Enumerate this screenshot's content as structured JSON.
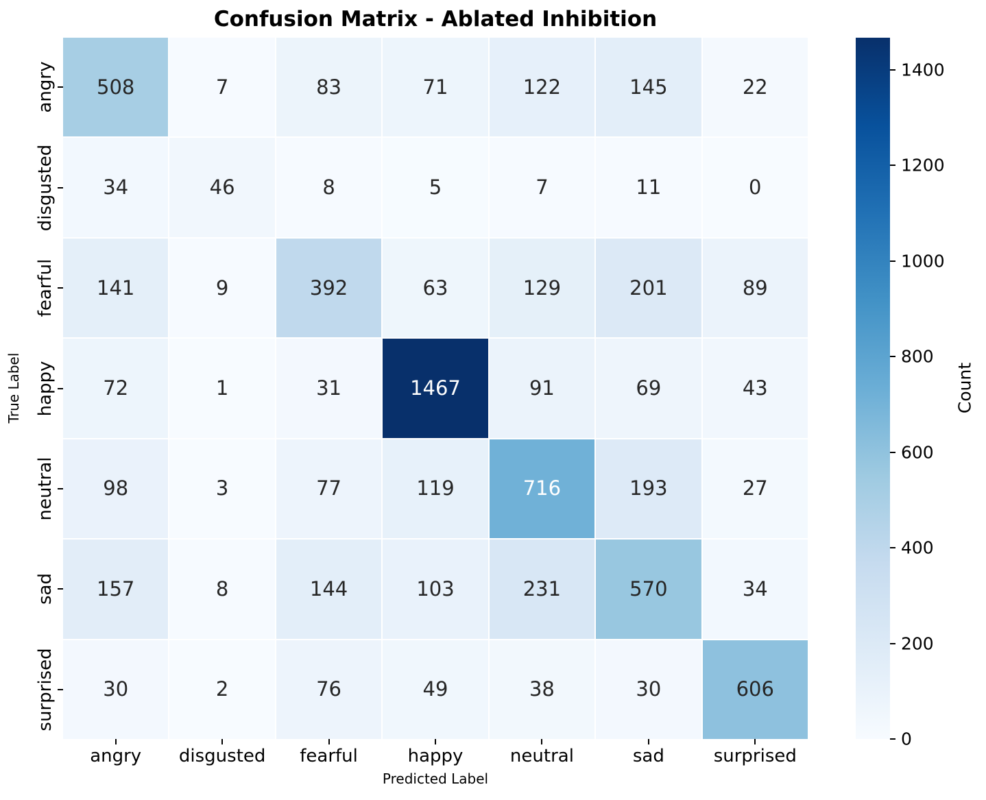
{
  "chart_data": {
    "type": "heatmap",
    "title": "Confusion Matrix - Ablated Inhibition",
    "xlabel": "Predicted Label",
    "ylabel": "True Label",
    "x_categories": [
      "angry",
      "disgusted",
      "fearful",
      "happy",
      "neutral",
      "sad",
      "surprised"
    ],
    "y_categories": [
      "angry",
      "disgusted",
      "fearful",
      "happy",
      "neutral",
      "sad",
      "surprised"
    ],
    "matrix": [
      [
        508,
        7,
        83,
        71,
        122,
        145,
        22
      ],
      [
        34,
        46,
        8,
        5,
        7,
        11,
        0
      ],
      [
        141,
        9,
        392,
        63,
        129,
        201,
        89
      ],
      [
        72,
        1,
        31,
        1467,
        91,
        69,
        43
      ],
      [
        98,
        3,
        77,
        119,
        716,
        193,
        27
      ],
      [
        157,
        8,
        144,
        103,
        231,
        570,
        34
      ],
      [
        30,
        2,
        76,
        49,
        38,
        30,
        606
      ]
    ],
    "vmin": 0,
    "vmax": 1467,
    "colormap": "Blues",
    "colorbar_label": "Count",
    "colorbar_ticks": [
      0,
      200,
      400,
      600,
      800,
      1000,
      1200,
      1400
    ],
    "grid": "white cell separators",
    "legend_position": "right colorbar"
  },
  "colors": {
    "background": "#ffffff",
    "annotation_dark": "#262626",
    "annotation_light": "#ffffff",
    "tick_color": "#000000",
    "blues_stops": [
      "#f7fbff",
      "#deebf7",
      "#c6dbef",
      "#9ecae1",
      "#6baed6",
      "#4292c6",
      "#2171b5",
      "#08519c",
      "#08306b"
    ]
  }
}
